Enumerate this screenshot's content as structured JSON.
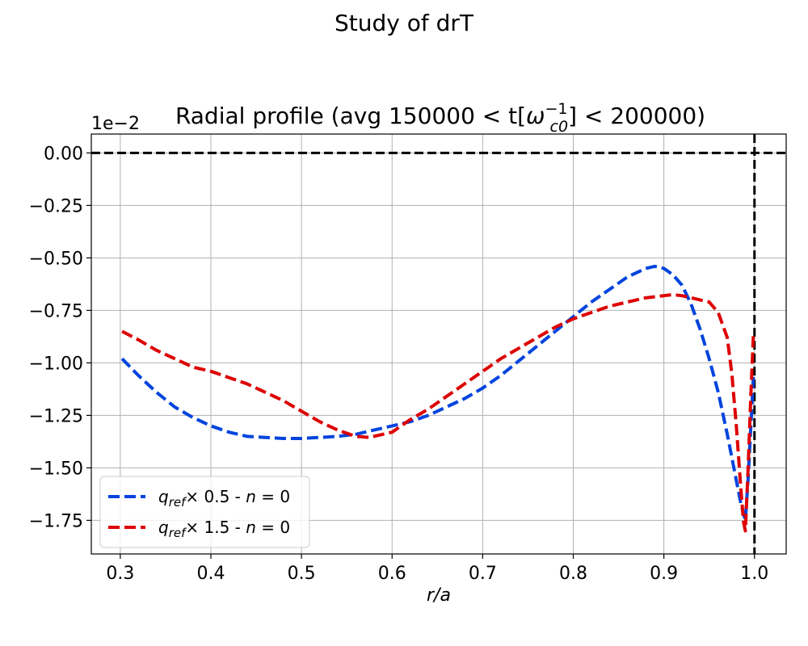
{
  "chart_data": {
    "type": "line",
    "suptitle": "Study of drT",
    "title": {
      "prefix": "Radial profile (avg 150000 < t[",
      "symbol": "ω",
      "subscript": "c0",
      "superscript": "−1",
      "suffix": "] < 200000)"
    },
    "xlabel": "r/a",
    "ylabel": "",
    "y_offset_label": "1e−2",
    "xlim": [
      0.268,
      1.035
    ],
    "ylim": [
      -1.91,
      0.09
    ],
    "x_ticks": [
      0.3,
      0.4,
      0.5,
      0.6,
      0.7,
      0.8,
      0.9,
      1.0
    ],
    "x_tick_labels": [
      "0.3",
      "0.4",
      "0.5",
      "0.6",
      "0.7",
      "0.8",
      "0.9",
      "1.0"
    ],
    "y_ticks": [
      0.0,
      -0.25,
      -0.5,
      -0.75,
      -1.0,
      -1.25,
      -1.5,
      -1.75
    ],
    "y_tick_labels": [
      "0.00",
      "−0.25",
      "−0.50",
      "−0.75",
      "−1.00",
      "−1.25",
      "−1.50",
      "−1.75"
    ],
    "grid": true,
    "legend_position": "lower-left",
    "reference_lines": [
      {
        "orientation": "horizontal",
        "value": 0.0,
        "color": "#000000"
      },
      {
        "orientation": "vertical",
        "value": 1.0,
        "color": "#000000"
      }
    ],
    "series": [
      {
        "legend": {
          "q": "q",
          "sub": "ref",
          "mult": "× 0.5 - ",
          "n": "n",
          "eq": " = 0"
        },
        "color": "#0044dd",
        "x": [
          0.302,
          0.32,
          0.34,
          0.36,
          0.38,
          0.4,
          0.42,
          0.44,
          0.46,
          0.48,
          0.5,
          0.52,
          0.54,
          0.56,
          0.58,
          0.6,
          0.62,
          0.64,
          0.66,
          0.68,
          0.7,
          0.72,
          0.74,
          0.76,
          0.78,
          0.8,
          0.82,
          0.84,
          0.86,
          0.88,
          0.89,
          0.9,
          0.91,
          0.92,
          0.93,
          0.94,
          0.95,
          0.96,
          0.97,
          0.975,
          0.98,
          0.985,
          0.988,
          0.99,
          0.993,
          0.996,
          0.999
        ],
        "y": [
          -0.98,
          -1.06,
          -1.14,
          -1.21,
          -1.26,
          -1.3,
          -1.33,
          -1.35,
          -1.355,
          -1.36,
          -1.36,
          -1.355,
          -1.35,
          -1.34,
          -1.32,
          -1.3,
          -1.28,
          -1.25,
          -1.21,
          -1.17,
          -1.12,
          -1.06,
          -0.99,
          -0.92,
          -0.85,
          -0.78,
          -0.71,
          -0.65,
          -0.59,
          -0.55,
          -0.54,
          -0.55,
          -0.58,
          -0.63,
          -0.72,
          -0.84,
          -0.98,
          -1.14,
          -1.34,
          -1.45,
          -1.56,
          -1.67,
          -1.72,
          -1.75,
          -1.55,
          -1.3,
          -1.05
        ]
      },
      {
        "legend": {
          "q": "q",
          "sub": "ref",
          "mult": "× 1.5 - ",
          "n": "n",
          "eq": " = 0"
        },
        "color": "#dd0000",
        "x": [
          0.302,
          0.32,
          0.34,
          0.36,
          0.38,
          0.4,
          0.42,
          0.44,
          0.46,
          0.48,
          0.5,
          0.52,
          0.54,
          0.56,
          0.575,
          0.59,
          0.6,
          0.62,
          0.64,
          0.66,
          0.68,
          0.7,
          0.72,
          0.74,
          0.76,
          0.78,
          0.8,
          0.82,
          0.84,
          0.86,
          0.88,
          0.9,
          0.91,
          0.92,
          0.93,
          0.94,
          0.95,
          0.96,
          0.97,
          0.975,
          0.98,
          0.985,
          0.988,
          0.99,
          0.993,
          0.996,
          0.999
        ],
        "y": [
          -0.85,
          -0.89,
          -0.94,
          -0.98,
          -1.02,
          -1.04,
          -1.07,
          -1.1,
          -1.14,
          -1.18,
          -1.23,
          -1.28,
          -1.32,
          -1.35,
          -1.355,
          -1.34,
          -1.33,
          -1.27,
          -1.22,
          -1.16,
          -1.1,
          -1.04,
          -0.98,
          -0.93,
          -0.88,
          -0.83,
          -0.79,
          -0.76,
          -0.73,
          -0.71,
          -0.69,
          -0.68,
          -0.675,
          -0.68,
          -0.69,
          -0.7,
          -0.71,
          -0.76,
          -0.88,
          -1.05,
          -1.3,
          -1.6,
          -1.76,
          -1.8,
          -1.5,
          -1.15,
          -0.85
        ]
      }
    ]
  }
}
